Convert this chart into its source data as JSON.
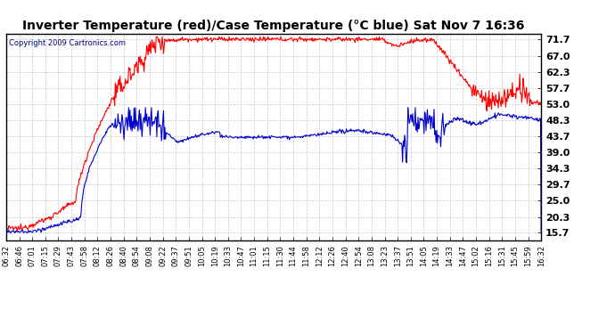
{
  "title": "Inverter Temperature (red)/Case Temperature (°C blue) Sat Nov 7 16:36",
  "copyright": "Copyright 2009 Cartronics.com",
  "bg_color": "#ffffff",
  "plot_bg_color": "#ffffff",
  "grid_color": "#c8c8c8",
  "grid_style": "--",
  "line_color_red": "#ff0000",
  "line_color_blue": "#0000cc",
  "yticks": [
    15.7,
    20.3,
    25.0,
    29.7,
    34.3,
    39.0,
    43.7,
    48.3,
    53.0,
    57.7,
    62.3,
    67.0,
    71.7
  ],
  "ylim": [
    13.5,
    73.5
  ],
  "xtick_labels": [
    "06:32",
    "06:46",
    "07:01",
    "07:15",
    "07:29",
    "07:43",
    "07:58",
    "08:12",
    "08:26",
    "08:40",
    "08:54",
    "09:08",
    "09:22",
    "09:37",
    "09:51",
    "10:05",
    "10:19",
    "10:33",
    "10:47",
    "11:01",
    "11:15",
    "11:30",
    "11:44",
    "11:58",
    "12:12",
    "12:26",
    "12:40",
    "12:54",
    "13:08",
    "13:23",
    "13:37",
    "13:51",
    "14:05",
    "14:19",
    "14:33",
    "14:47",
    "15:02",
    "15:16",
    "15:31",
    "15:45",
    "15:59",
    "16:32"
  ],
  "title_fontsize": 10,
  "copyright_fontsize": 6,
  "ytick_fontsize": 8,
  "xtick_fontsize": 6
}
